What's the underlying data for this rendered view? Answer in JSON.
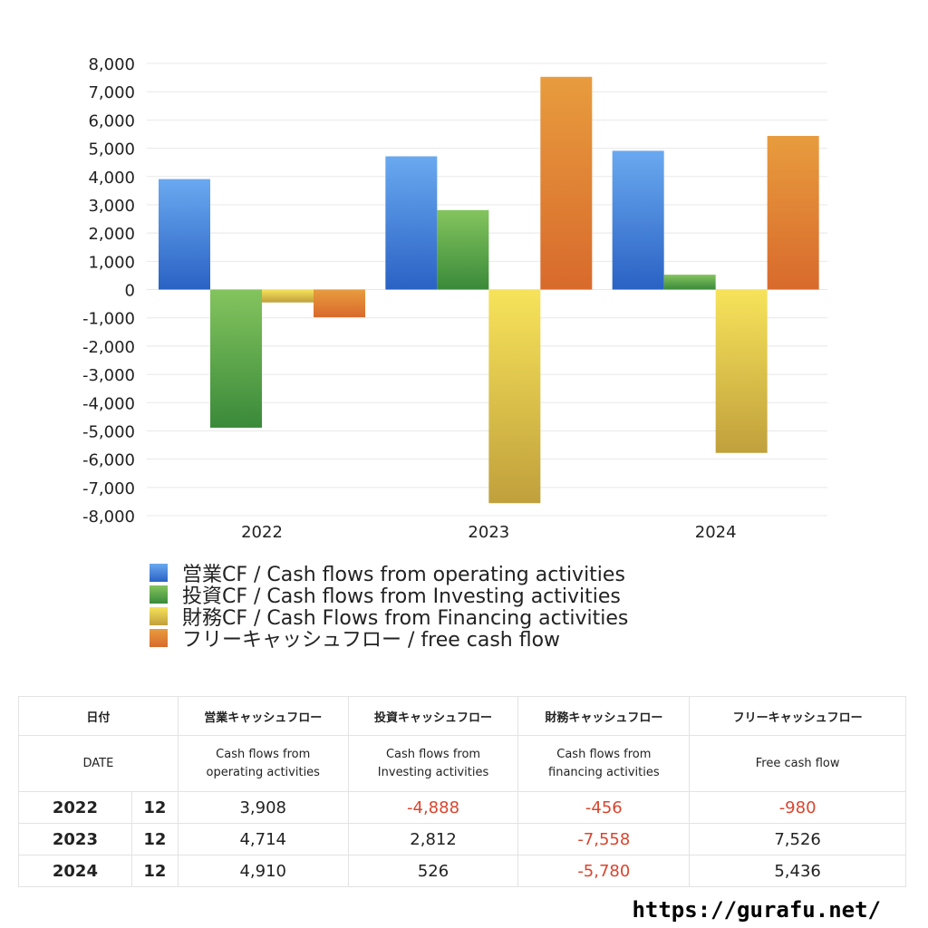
{
  "chart_data": {
    "type": "bar",
    "categories": [
      "2022",
      "2023",
      "2024"
    ],
    "ylim": [
      -8000,
      8000
    ],
    "yticks": [
      8000,
      7000,
      6000,
      5000,
      4000,
      3000,
      2000,
      1000,
      0,
      -1000,
      -2000,
      -3000,
      -4000,
      -5000,
      -6000,
      -7000,
      -8000
    ],
    "ytick_labels": [
      "8,000",
      "7,000",
      "6,000",
      "5,000",
      "4,000",
      "3,000",
      "2,000",
      "1,000",
      "0",
      "-1,000",
      "-2,000",
      "-3,000",
      "-4,000",
      "-5,000",
      "-6,000",
      "-7,000",
      "-8,000"
    ],
    "grid": true,
    "legend_position": "bottom-left",
    "series": [
      {
        "name": "営業CF / Cash flows from operating activities",
        "values": [
          3908,
          4714,
          4910
        ],
        "color_top": "#6aa9f0",
        "color_bottom": "#2a62c4"
      },
      {
        "name": "投資CF / Cash flows from Investing activities",
        "values": [
          -4888,
          2812,
          526
        ],
        "color_top": "#84c45e",
        "color_bottom": "#3a8a3a"
      },
      {
        "name": "財務CF / Cash Flows from Financing activities",
        "values": [
          -456,
          -7558,
          -5780
        ],
        "color_top": "#f7e35a",
        "color_bottom": "#c0a03c"
      },
      {
        "name": "フリーキャッシュフロー / free cash flow",
        "values": [
          -980,
          7526,
          5436
        ],
        "color_top": "#e89c3e",
        "color_bottom": "#d86a2c"
      }
    ]
  },
  "table": {
    "header1": [
      "日付",
      "営業キャッシュフロー",
      "投資キャッシュフロー",
      "財務キャッシュフロー",
      "フリーキャッシュフロー"
    ],
    "header2": [
      "DATE",
      "Cash flows from\noperating activities",
      "Cash flows from\nInvesting activities",
      "Cash flows from\nfinancing activities",
      "Free cash flow"
    ],
    "rows": [
      {
        "year": "2022",
        "month": "12",
        "cells": [
          "3,908",
          "-4,888",
          "-456",
          "-980"
        ]
      },
      {
        "year": "2023",
        "month": "12",
        "cells": [
          "4,714",
          "2,812",
          "-7,558",
          "7,526"
        ]
      },
      {
        "year": "2024",
        "month": "12",
        "cells": [
          "4,910",
          "526",
          "-5,780",
          "5,436"
        ]
      }
    ]
  },
  "site_url": "https://gurafu.net/",
  "colors": {
    "negative_text": "#d9452e",
    "grid": "#e8e8e8"
  }
}
